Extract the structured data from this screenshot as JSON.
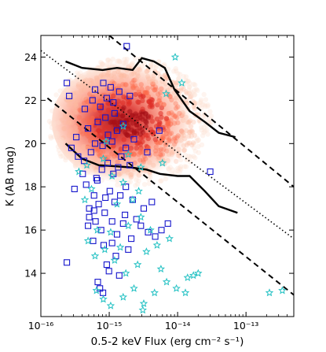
{
  "chart_data": {
    "type": "scatter",
    "xlabel": "0.5-2 keV Flux (erg cm⁻² s⁻¹)",
    "ylabel": "K (AB mag)",
    "xscale": "log",
    "xlim": [
      1e-16,
      5e-13
    ],
    "ylim": [
      12,
      25
    ],
    "grid": false,
    "x_ticks": [
      {
        "value": 1e-16,
        "label": "10⁻¹⁶"
      },
      {
        "value": 1e-15,
        "label": "10⁻¹⁵"
      },
      {
        "value": 1e-14,
        "label": "10⁻¹⁴"
      },
      {
        "value": 1e-13,
        "label": "10⁻¹³"
      }
    ],
    "y_ticks": [
      {
        "value": 14,
        "label": "14"
      },
      {
        "value": 16,
        "label": "16"
      },
      {
        "value": 18,
        "label": "18"
      },
      {
        "value": 20,
        "label": "20"
      },
      {
        "value": 22,
        "label": "22"
      },
      {
        "value": 24,
        "label": "24"
      }
    ],
    "density_cloud": {
      "description": "red-shaded density of simulated sources",
      "colors": [
        "#fde0d2",
        "#fcbba1",
        "#fb6a4a",
        "#de2d26",
        "#a50f15"
      ],
      "center": [
        2e-15,
        21.0
      ],
      "x_range": [
        2e-16,
        5e-14
      ],
      "y_range": [
        18.5,
        24.5
      ]
    },
    "series": [
      {
        "marker": "square",
        "color": "#1515cc",
        "points": [
          [
            2.4e-16,
            14.5
          ],
          [
            6.8e-16,
            13.6
          ],
          [
            7.3e-16,
            13.3
          ],
          [
            8.1e-16,
            13.1
          ],
          [
            1.4e-15,
            13.9
          ],
          [
            9.2e-16,
            14.4
          ],
          [
            1.25e-15,
            14.8
          ],
          [
            1.9e-15,
            15.1
          ],
          [
            1.7e-15,
            16.7
          ],
          [
            2.1e-15,
            15.6
          ],
          [
            5.8e-16,
            15.5
          ],
          [
            6.3e-16,
            16.4
          ],
          [
            7.6e-16,
            16.0
          ],
          [
            8.6e-16,
            16.8
          ],
          [
            1.1e-15,
            16.4
          ],
          [
            1.3e-15,
            15.8
          ],
          [
            1.6e-15,
            16.3
          ],
          [
            2.9e-15,
            16.2
          ],
          [
            3.7e-15,
            15.9
          ],
          [
            5.8e-15,
            16.0
          ],
          [
            7.2e-15,
            16.3
          ],
          [
            4.7e-15,
            15.7
          ],
          [
            2.5e-15,
            16.5
          ],
          [
            3.2e-15,
            17.0
          ],
          [
            5.1e-16,
            17.0
          ],
          [
            6e-16,
            17.6
          ],
          [
            7e-16,
            17.2
          ],
          [
            8.8e-16,
            17.5
          ],
          [
            1.02e-15,
            17.8
          ],
          [
            1.2e-15,
            17.3
          ],
          [
            1.45e-15,
            17.6
          ],
          [
            1.75e-15,
            18.0
          ],
          [
            2.2e-15,
            17.4
          ],
          [
            4.2e-15,
            17.3
          ],
          [
            3.1e-16,
            17.9
          ],
          [
            4.1e-16,
            18.6
          ],
          [
            4.6e-16,
            18.1
          ],
          [
            6.5e-16,
            18.4
          ],
          [
            7.8e-16,
            18.8
          ],
          [
            9.5e-16,
            19.1
          ],
          [
            1.15e-15,
            18.6
          ],
          [
            1.35e-15,
            18.9
          ],
          [
            2e-15,
            19.0
          ],
          [
            1.5e-15,
            19.4
          ],
          [
            3.5e-16,
            19.4
          ],
          [
            4.3e-16,
            19.2
          ],
          [
            5.4e-16,
            19.6
          ],
          [
            2.8e-16,
            19.8
          ],
          [
            3.3e-16,
            20.3
          ],
          [
            6.2e-16,
            20.0
          ],
          [
            8e-16,
            19.9
          ],
          [
            9.6e-16,
            20.4
          ],
          [
            1.1e-15,
            20.1
          ],
          [
            1.3e-15,
            20.6
          ],
          [
            1.75e-15,
            19.8
          ],
          [
            2.3e-15,
            20.2
          ],
          [
            3.6e-15,
            19.6
          ],
          [
            4.9e-16,
            20.7
          ],
          [
            6.8e-16,
            21.0
          ],
          [
            8.8e-16,
            21.2
          ],
          [
            1.2e-15,
            21.4
          ],
          [
            1.6e-15,
            20.9
          ],
          [
            5.4e-15,
            20.6
          ],
          [
            4.4e-16,
            21.6
          ],
          [
            5.7e-16,
            22.0
          ],
          [
            7.4e-16,
            21.7
          ],
          [
            9.2e-16,
            22.1
          ],
          [
            1.15e-15,
            21.9
          ],
          [
            1.4e-15,
            22.4
          ],
          [
            2e-15,
            22.2
          ],
          [
            6.2e-16,
            22.5
          ],
          [
            8.2e-16,
            22.8
          ],
          [
            1.05e-15,
            22.6
          ],
          [
            2.6e-16,
            22.2
          ],
          [
            2.4e-16,
            22.8
          ],
          [
            1.8e-15,
            24.5
          ],
          [
            3e-14,
            18.7
          ],
          [
            6.7e-16,
            18.3
          ],
          [
            5.1e-16,
            16.6
          ],
          [
            4.9e-16,
            16.2
          ],
          [
            1.1e-15,
            15.4
          ],
          [
            6e-16,
            16.9
          ],
          [
            8.3e-16,
            15.3
          ],
          [
            9.9e-16,
            14.1
          ]
        ]
      },
      {
        "marker": "star",
        "color": "#22c1c3",
        "points": [
          [
            6.5e-16,
            13.2
          ],
          [
            8.2e-16,
            12.8
          ],
          [
            1.05e-15,
            12.5
          ],
          [
            1.6e-15,
            12.9
          ],
          [
            2.3e-15,
            13.3
          ],
          [
            3.2e-15,
            12.6
          ],
          [
            4.6e-15,
            13.1
          ],
          [
            5.7e-15,
            14.2
          ],
          [
            6.9e-15,
            13.6
          ],
          [
            9.6e-15,
            13.3
          ],
          [
            1.3e-14,
            13.1
          ],
          [
            1.7e-14,
            13.9
          ],
          [
            2e-14,
            14.0
          ],
          [
            2.6e-15,
            14.4
          ],
          [
            1.75e-15,
            14.0
          ],
          [
            1.2e-15,
            14.6
          ],
          [
            8.6e-16,
            15.1
          ],
          [
            6.2e-16,
            14.8
          ],
          [
            4.9e-16,
            15.5
          ],
          [
            1.45e-15,
            15.2
          ],
          [
            3.5e-15,
            15.0
          ],
          [
            5e-15,
            15.3
          ],
          [
            7.6e-15,
            15.6
          ],
          [
            4e-15,
            16.0
          ],
          [
            2.9e-15,
            16.6
          ],
          [
            1.9e-15,
            16.2
          ],
          [
            1.05e-15,
            15.9
          ],
          [
            6.7e-16,
            16.0
          ],
          [
            1.3e-15,
            17.2
          ],
          [
            2.2e-15,
            17.4
          ],
          [
            2.7e-15,
            17.8
          ],
          [
            1.6e-15,
            18.2
          ],
          [
            1.1e-15,
            18.5
          ],
          [
            3.6e-16,
            18.7
          ],
          [
            4.7e-16,
            19.0
          ],
          [
            8.2e-16,
            19.3
          ],
          [
            1.9e-15,
            19.5
          ],
          [
            2.9e-15,
            18.9
          ],
          [
            6e-15,
            19.1
          ],
          [
            9e-16,
            20.1
          ],
          [
            6.8e-15,
            22.3
          ],
          [
            1.15e-14,
            22.8
          ],
          [
            9.2e-15,
            24.0
          ],
          [
            1.6e-15,
            20.8
          ],
          [
            2.2e-13,
            13.1
          ],
          [
            3.4e-13,
            13.2
          ],
          [
            1.4e-14,
            13.8
          ],
          [
            3.1e-15,
            12.3
          ],
          [
            4.4e-16,
            17.4
          ],
          [
            5.5e-16,
            17.9
          ]
        ]
      }
    ],
    "lines": [
      {
        "style": "solid",
        "color": "#000000",
        "points": [
          [
            2.3e-16,
            23.8
          ],
          [
            4e-16,
            23.5
          ],
          [
            8e-16,
            23.4
          ],
          [
            1.3e-15,
            23.5
          ],
          [
            2.2e-15,
            23.4
          ],
          [
            3e-15,
            23.95
          ],
          [
            4.5e-15,
            23.8
          ],
          [
            6.5e-15,
            23.5
          ],
          [
            9e-15,
            22.5
          ],
          [
            1.5e-14,
            21.5
          ],
          [
            2.5e-14,
            21.0
          ],
          [
            4e-14,
            20.5
          ],
          [
            7e-14,
            20.3
          ]
        ]
      },
      {
        "style": "solid",
        "color": "#000000",
        "points": [
          [
            2.3e-16,
            20.0
          ],
          [
            4e-16,
            19.3
          ],
          [
            7e-16,
            19.0
          ],
          [
            1.2e-15,
            18.95
          ],
          [
            2e-15,
            18.9
          ],
          [
            3.5e-15,
            18.8
          ],
          [
            5.5e-15,
            18.6
          ],
          [
            1e-14,
            18.5
          ],
          [
            1.5e-14,
            18.5
          ],
          [
            2.5e-14,
            17.8
          ],
          [
            4e-14,
            17.1
          ],
          [
            7.5e-14,
            16.8
          ]
        ]
      },
      {
        "style": "dashed",
        "color": "#000000",
        "points": [
          [
            1e-15,
            25.0
          ],
          [
            5e-13,
            18.0
          ]
        ]
      },
      {
        "style": "dashed",
        "color": "#000000",
        "points": [
          [
            1.25e-16,
            22.1
          ],
          [
            5e-13,
            13.0
          ]
        ]
      },
      {
        "style": "dotted",
        "color": "#000000",
        "points": [
          [
            1e-16,
            24.3
          ],
          [
            5e-13,
            15.6
          ]
        ]
      }
    ]
  }
}
